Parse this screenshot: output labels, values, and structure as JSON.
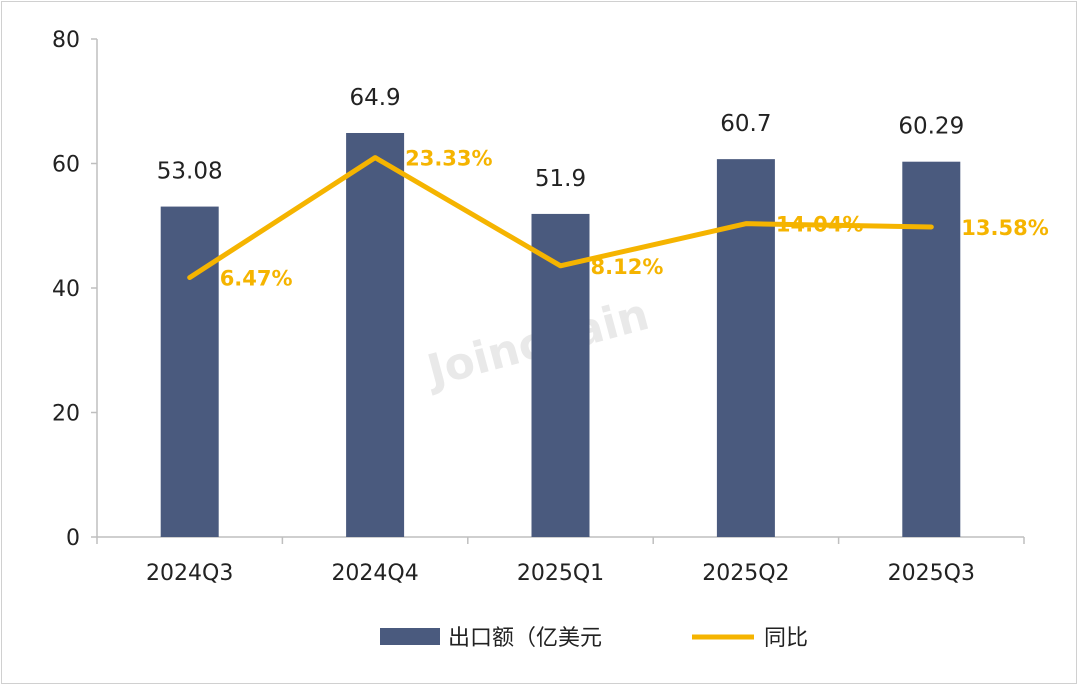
{
  "chart_data": {
    "type": "bar",
    "categories": [
      "2024Q3",
      "2024Q4",
      "2025Q1",
      "2025Q2",
      "2025Q3"
    ],
    "series": [
      {
        "name": "出口额（亿美元",
        "type": "bar",
        "values": [
          53.08,
          64.9,
          51.9,
          60.7,
          60.29
        ],
        "labels": [
          "53.08",
          "64.9",
          "51.9",
          "60.7",
          "60.29"
        ],
        "color": "#4a5a7e"
      },
      {
        "name": "同比",
        "type": "line",
        "values": [
          6.47,
          23.33,
          8.12,
          14.04,
          13.58
        ],
        "labels": [
          "6.47%",
          "23.33%",
          "8.12%",
          "14.04%",
          "13.58%"
        ],
        "color": "#f5b400"
      }
    ],
    "y_ticks": [
      "0",
      "20",
      "40",
      "60",
      "80"
    ],
    "ylim": [
      0,
      80
    ],
    "grid": false,
    "legend": "bottom"
  },
  "watermark": "Joinchain"
}
